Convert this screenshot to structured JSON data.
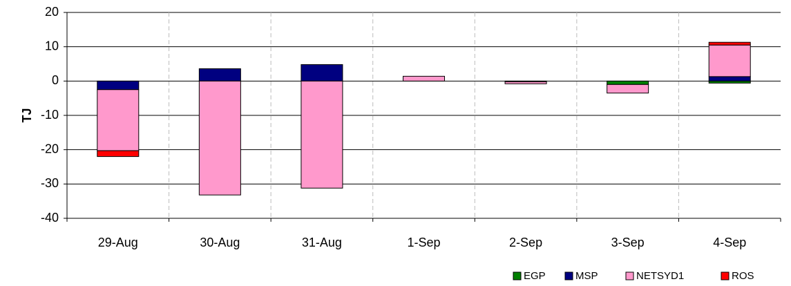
{
  "chart_data": {
    "type": "stacked_bar",
    "y_label": "TJ",
    "categories": [
      "29-Aug",
      "30-Aug",
      "31-Aug",
      "1-Sep",
      "2-Sep",
      "3-Sep",
      "4-Sep"
    ],
    "series": [
      {
        "name": "EGP",
        "color": "#008000",
        "values": [
          0,
          0,
          0,
          0,
          0,
          -1,
          -0.6
        ]
      },
      {
        "name": "MSP",
        "color": "#000080",
        "values": [
          -2.5,
          3.6,
          4.8,
          0,
          -0.2,
          0,
          1.3
        ]
      },
      {
        "name": "NETSYD1",
        "color": "#ff99cc",
        "values": [
          -17.8,
          -33.2,
          -31.2,
          1.4,
          -0.6,
          -2.5,
          9.2
        ]
      },
      {
        "name": "ROS",
        "color": "#ff0000",
        "values": [
          -1.7,
          0,
          0,
          0,
          0,
          0,
          0.8
        ]
      }
    ],
    "ylim": [
      -40,
      20
    ],
    "yticks": [
      -40,
      -30,
      -20,
      -10,
      0,
      10,
      20
    ],
    "grid": true,
    "legend": "bottom-right"
  }
}
